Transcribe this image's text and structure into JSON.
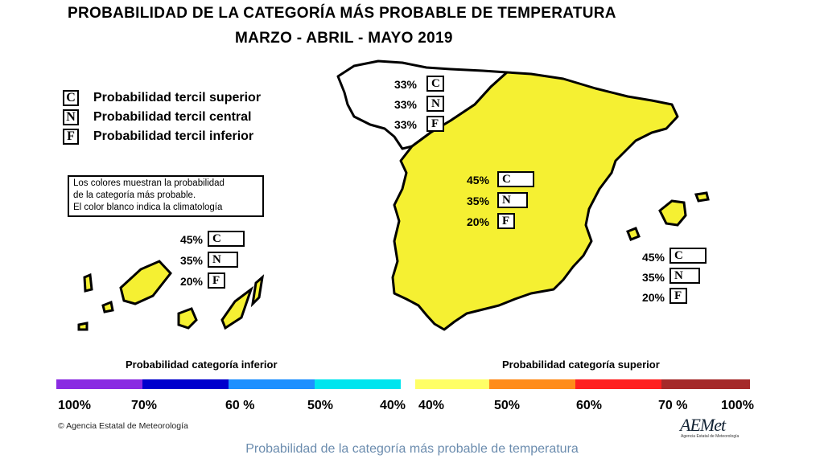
{
  "title": {
    "line1": "PROBABILIDAD DE LA CATEGORÍA MÁS PROBABLE DE  TEMPERATURA",
    "line2": "MARZO - ABRIL - MAYO 2019"
  },
  "legend": [
    {
      "letter": "C",
      "label": "Probabilidad  tercil superior"
    },
    {
      "letter": "N",
      "label": "Probabilidad  tercil central"
    },
    {
      "letter": "F",
      "label": "Probabilidad  tercil inferior"
    }
  ],
  "note": {
    "line1": "Los colores muestran la probabilidad",
    "line2": "de la categoría más probable.",
    "line3": "El color blanco indica la climatología"
  },
  "regions": {
    "northwest": [
      {
        "pct": "33%",
        "letter": "C",
        "value": 33
      },
      {
        "pct": "33%",
        "letter": "N",
        "value": 33
      },
      {
        "pct": "33%",
        "letter": "F",
        "value": 33
      }
    ],
    "peninsula": [
      {
        "pct": "45%",
        "letter": "C",
        "value": 45
      },
      {
        "pct": "35%",
        "letter": "N",
        "value": 35
      },
      {
        "pct": "20%",
        "letter": "F",
        "value": 20
      }
    ],
    "canarias": [
      {
        "pct": "45%",
        "letter": "C",
        "value": 45
      },
      {
        "pct": "35%",
        "letter": "N",
        "value": 35
      },
      {
        "pct": "20%",
        "letter": "F",
        "value": 20
      }
    ],
    "baleares": [
      {
        "pct": "45%",
        "letter": "C",
        "value": 45
      },
      {
        "pct": "35%",
        "letter": "N",
        "value": 35
      },
      {
        "pct": "20%",
        "letter": "F",
        "value": 20
      }
    ]
  },
  "scale": {
    "lower_title": "Probabilidad categoría inferior",
    "upper_title": "Probabilidad categoría superior",
    "colors": [
      "#8a2be2",
      "#0000cd",
      "#1e90ff",
      "#00e5ee",
      "#ffffff",
      "#ffff66",
      "#ff8c1a",
      "#ff2020",
      "#a52a2a"
    ],
    "labels": [
      "100%",
      "70%",
      "60 %",
      "50%",
      "40%",
      "40%",
      "50%",
      "60%",
      "70 %",
      "100%"
    ]
  },
  "colors": {
    "yellow": "#f5f032",
    "outline": "#000000"
  },
  "footer": {
    "agency": "Agencia Estatal de Meteorología",
    "logo": "AEMet",
    "logo_sub": "Agencia Estatal de Meteorología",
    "caption": "Probabilidad de la categoría más probable de temperatura"
  }
}
